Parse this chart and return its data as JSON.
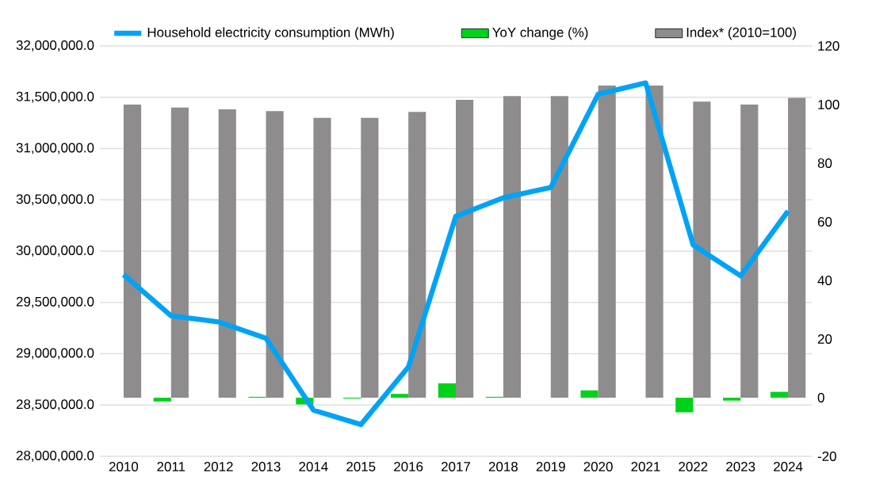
{
  "chart_data": {
    "type": "bar",
    "categories": [
      "2010",
      "2011",
      "2012",
      "2013",
      "2014",
      "2015",
      "2016",
      "2017",
      "2018",
      "2019",
      "2020",
      "2021",
      "2022",
      "2023",
      "2024"
    ],
    "series": [
      {
        "name": "Household electricity consumption (MWh)",
        "type": "line",
        "axis": "y",
        "color": "#00a3f5",
        "values": [
          29770000,
          29370000,
          29310000,
          29150000,
          28450000,
          28310000,
          28870000,
          30340000,
          30520000,
          30620000,
          31530000,
          31640000,
          30060000,
          29760000,
          30390000
        ]
      },
      {
        "name": "YoY change (%)",
        "axis": "y2",
        "color": "#00d21c",
        "values": [
          null,
          -1.3,
          0,
          0.3,
          -2.3,
          -0.3,
          1.3,
          4.9,
          0.3,
          0,
          2.5,
          0,
          -5,
          -1,
          2
        ]
      },
      {
        "name": "Index* (2010=100)",
        "axis": "y2",
        "color": "#8e8c8c",
        "values": [
          100,
          99,
          98.4,
          97.8,
          95.5,
          95.5,
          97.5,
          101.6,
          102.9,
          102.9,
          106.5,
          106.5,
          101,
          100,
          102.3
        ]
      }
    ],
    "ylim": [
      28000000,
      32000000
    ],
    "yticks": [
      {
        "value": 28000000,
        "label": "28,000,000.0"
      },
      {
        "value": 28500000,
        "label": "28,500,000.0"
      },
      {
        "value": 29000000,
        "label": "29,000,000.0"
      },
      {
        "value": 29500000,
        "label": "29,500,000.0"
      },
      {
        "value": 30000000,
        "label": "30,000,000.0"
      },
      {
        "value": 30500000,
        "label": "30,500,000.0"
      },
      {
        "value": 31000000,
        "label": "31,000,000.0"
      },
      {
        "value": 31500000,
        "label": "31,500,000.0"
      },
      {
        "value": 32000000,
        "label": "32,000,000.0"
      }
    ],
    "y2lim": [
      -20,
      120
    ],
    "y2ticks": [
      -20,
      0,
      20,
      40,
      60,
      80,
      100,
      120
    ],
    "grid": "y",
    "legend": "top"
  }
}
